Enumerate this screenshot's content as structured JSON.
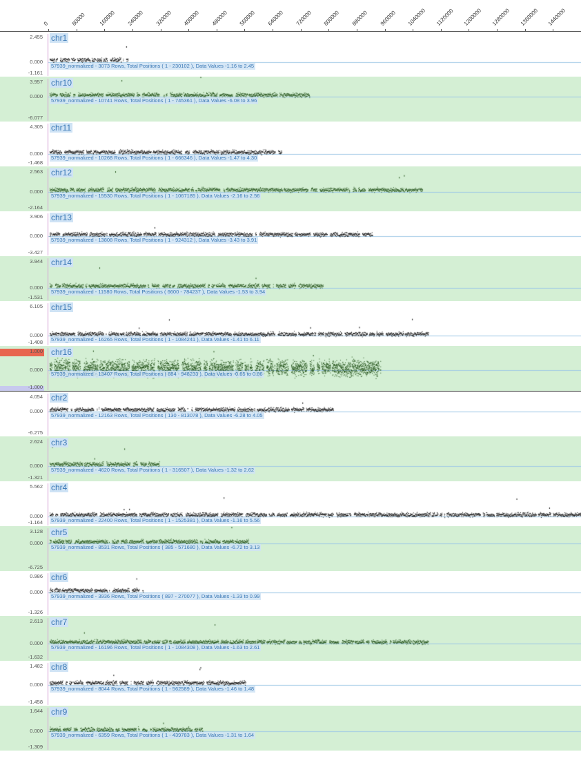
{
  "ruler": {
    "ticks": [
      "0",
      "80000",
      "160000",
      "240000",
      "320000",
      "400000",
      "480000",
      "560000",
      "640000",
      "720000",
      "800000",
      "880000",
      "960000",
      "1040000",
      "1120000",
      "1200000",
      "1280000",
      "1360000",
      "1440000"
    ]
  },
  "tracks": [
    {
      "name": "chr1",
      "max": "2.455",
      "zero": "0.000",
      "min": "-1.161",
      "info": "57939_normalized - 3073 Rows, Total Positions ( 1 - 230102 ), Data Values -1.16 to 2.45",
      "end": 230102,
      "alt": false,
      "color": "#000000"
    },
    {
      "name": "chr10",
      "max": "3.957",
      "zero": "0.000",
      "min": "-6.077",
      "info": "57939_normalized - 10741 Rows, Total Positions ( 1 - 745361 ), Data Values -6.08 to 3.96",
      "end": 745361,
      "alt": true,
      "color": "#1a4a10"
    },
    {
      "name": "chr11",
      "max": "4.305",
      "zero": "0.000",
      "min": "-1.468",
      "info": "57939_normalized - 10268 Rows, Total Positions ( 1 - 666346 ), Data Values -1.47 to 4.30",
      "end": 666346,
      "alt": false,
      "color": "#000000"
    },
    {
      "name": "chr12",
      "max": "2.563",
      "zero": "0.000",
      "min": "-2.164",
      "info": "57939_normalized - 15530 Rows, Total Positions ( 1 - 1067185 ), Data Values -2.16 to 2.56",
      "end": 1067185,
      "alt": true,
      "color": "#1a4a10"
    },
    {
      "name": "chr13",
      "max": "3.906",
      "zero": "0.000",
      "min": "-3.427",
      "info": "57939_normalized - 13808 Rows, Total Positions ( 1 - 924312 ), Data Values -3.43 to 3.91",
      "end": 924312,
      "alt": false,
      "color": "#000000"
    },
    {
      "name": "chr14",
      "max": "3.944",
      "zero": "0.000",
      "min": "-1.531",
      "info": "57939_normalized - 11580 Rows, Total Positions ( 6600 - 784237 ), Data Values -1.53 to 3.94",
      "end": 784237,
      "alt": true,
      "color": "#1a4a10"
    },
    {
      "name": "chr15",
      "max": "6.105",
      "zero": "0.000",
      "min": "-1.408",
      "info": "57939_normalized - 16265 Rows, Total Positions ( 1 - 1084241 ), Data Values -1.41 to 6.11",
      "end": 1084241,
      "alt": false,
      "color": "#000000"
    },
    {
      "name": "chr16",
      "max": "1.000",
      "zero": "0.000",
      "min": "-1.000",
      "info": "57939_normalized - 13407 Rows, Total Positions ( 884 - 948233 ), Data Values -0.65 to 0.86",
      "end": 948233,
      "alt": true,
      "color": "#1a4a10",
      "selected": true
    },
    {
      "name": "chr2",
      "max": "4.054",
      "zero": "0.000",
      "min": "-6.275",
      "info": "57939_normalized - 12163 Rows, Total Positions ( 130 - 813078 ), Data Values -6.28 to 4.05",
      "end": 813078,
      "alt": false,
      "color": "#000000"
    },
    {
      "name": "chr3",
      "max": "2.624",
      "zero": "0.000",
      "min": "-1.321",
      "info": "57939_normalized - 4620 Rows, Total Positions ( 1 - 316507 ), Data Values -1.32 to 2.62",
      "end": 316507,
      "alt": true,
      "color": "#1a4a10"
    },
    {
      "name": "chr4",
      "max": "5.562",
      "zero": "0.000",
      "min": "-1.164",
      "info": "57939_normalized - 22400 Rows, Total Positions ( 1 - 1525381 ), Data Values -1.16 to 5.56",
      "end": 1525381,
      "alt": false,
      "color": "#000000"
    },
    {
      "name": "chr5",
      "max": "3.128",
      "zero": "0.000",
      "min": "-6.725",
      "info": "57939_normalized - 8531 Rows, Total Positions ( 385 - 571680 ), Data Values -6.72 to 3.13",
      "end": 571680,
      "alt": true,
      "color": "#1a4a10"
    },
    {
      "name": "chr6",
      "max": "0.986",
      "zero": "0.000",
      "min": "-1.326",
      "info": "57939_normalized - 3936 Rows, Total Positions ( 897 - 270077 ), Data Values -1.33 to 0.99",
      "end": 270077,
      "alt": false,
      "color": "#000000"
    },
    {
      "name": "chr7",
      "max": "2.613",
      "zero": "0.000",
      "min": "-1.632",
      "info": "57939_normalized - 16196 Rows, Total Positions ( 1 - 1084308 ), Data Values -1.63 to 2.61",
      "end": 1084308,
      "alt": true,
      "color": "#1a4a10"
    },
    {
      "name": "chr8",
      "max": "1.482",
      "zero": "0.000",
      "min": "-1.458",
      "info": "57939_normalized - 8044 Rows, Total Positions ( 1 - 562589 ), Data Values -1.46 to 1.48",
      "end": 562589,
      "alt": false,
      "color": "#000000"
    },
    {
      "name": "chr9",
      "max": "1.644",
      "zero": "0.000",
      "min": "-1.309",
      "info": "57939_normalized - 6359 Rows, Total Positions ( 1 - 439783 ), Data Values -1.31 to 1.64",
      "end": 439783,
      "alt": true,
      "color": "#1a4a10"
    }
  ]
}
